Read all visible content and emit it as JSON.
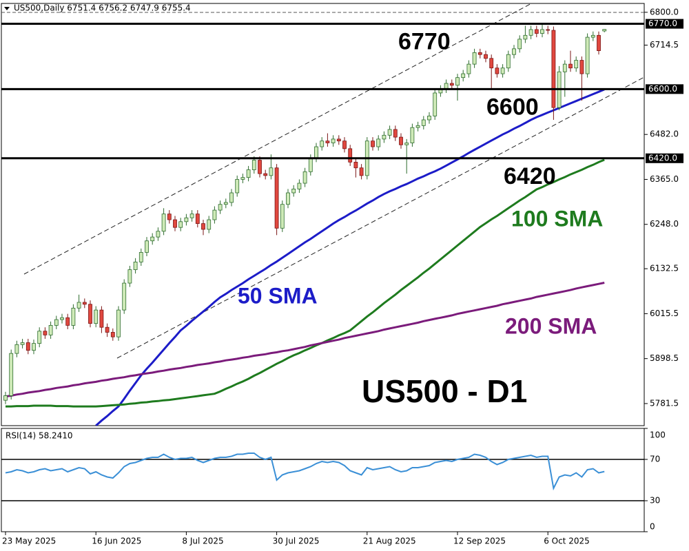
{
  "chart_data": [
    {
      "type": "candlestick",
      "header": "US500,Daily 6751.4 6756.2 6747.9 6755.4",
      "categories": [
        "23 May 2025",
        null,
        null,
        null,
        null,
        null,
        null,
        null,
        null,
        null,
        null,
        null,
        null,
        null,
        null,
        null,
        "16 Jun 2025",
        null,
        null,
        null,
        null,
        null,
        null,
        null,
        null,
        null,
        null,
        null,
        null,
        null,
        null,
        null,
        "8 Jul 2025",
        null,
        null,
        null,
        null,
        null,
        null,
        null,
        null,
        null,
        null,
        null,
        null,
        null,
        null,
        null,
        "30 Jul 2025",
        null,
        null,
        null,
        null,
        null,
        null,
        null,
        null,
        null,
        null,
        null,
        null,
        null,
        null,
        null,
        "21 Aug 2025",
        null,
        null,
        null,
        null,
        null,
        null,
        null,
        null,
        null,
        null,
        null,
        null,
        null,
        null,
        null,
        "12 Sep 2025",
        null,
        null,
        null,
        null,
        null,
        null,
        null,
        null,
        null,
        null,
        null,
        null,
        null,
        null,
        null,
        "6 Oct 2025",
        null,
        null,
        null,
        null,
        null,
        null,
        null,
        null,
        null,
        null
      ],
      "open": [
        5790,
        5802,
        5912,
        5935,
        5940,
        5920,
        5938,
        5970,
        5960,
        5985,
        6000,
        6005,
        5985,
        6030,
        6045,
        6040,
        5990,
        6025,
        5980,
        5967,
        5955,
        6025,
        6095,
        6130,
        6150,
        6175,
        6205,
        6215,
        6230,
        6275,
        6260,
        6240,
        6255,
        6265,
        6275,
        6250,
        6235,
        6260,
        6285,
        6300,
        6305,
        6330,
        6365,
        6370,
        6390,
        6415,
        6380,
        6375,
        6395,
        6238,
        6300,
        6330,
        6340,
        6355,
        6385,
        6420,
        6450,
        6465,
        6460,
        6470,
        6465,
        6445,
        6410,
        6395,
        6375,
        6465,
        6450,
        6470,
        6480,
        6495,
        6475,
        6455,
        6460,
        6500,
        6505,
        6520,
        6530,
        6590,
        6600,
        6615,
        6610,
        6630,
        6640,
        6665,
        6695,
        6690,
        6680,
        6655,
        6640,
        6655,
        6690,
        6705,
        6730,
        6740,
        6755,
        6745,
        6755,
        6753,
        6552,
        6645,
        6665,
        6655,
        6675,
        6640,
        6735,
        6740,
        6751.4
      ],
      "high": [
        5812,
        5922,
        5945,
        5950,
        5950,
        5948,
        5980,
        5980,
        5995,
        6010,
        6015,
        6015,
        6040,
        6065,
        6055,
        6050,
        6035,
        6035,
        5990,
        5977,
        6035,
        6105,
        6140,
        6160,
        6185,
        6215,
        6225,
        6240,
        6290,
        6285,
        6270,
        6265,
        6275,
        6285,
        6285,
        6260,
        6270,
        6295,
        6310,
        6315,
        6340,
        6375,
        6380,
        6400,
        6425,
        6425,
        6390,
        6430,
        6405,
        6310,
        6340,
        6350,
        6365,
        6395,
        6430,
        6460,
        6475,
        6485,
        6480,
        6480,
        6475,
        6455,
        6420,
        6405,
        6475,
        6475,
        6480,
        6490,
        6505,
        6505,
        6485,
        6470,
        6510,
        6515,
        6530,
        6540,
        6600,
        6610,
        6625,
        6625,
        6640,
        6650,
        6675,
        6705,
        6705,
        6700,
        6690,
        6665,
        6665,
        6700,
        6715,
        6740,
        6765,
        6765,
        6765,
        6770,
        6765,
        6763,
        6660,
        6675,
        6700,
        6685,
        6685,
        6745,
        6750,
        6750,
        6756.2
      ],
      "low": [
        5780,
        5792,
        5902,
        5925,
        5910,
        5910,
        5928,
        5950,
        5950,
        5975,
        5990,
        5975,
        5975,
        6020,
        6030,
        5980,
        5980,
        5965,
        5955,
        5945,
        5945,
        6015,
        6085,
        6120,
        6140,
        6165,
        6195,
        6205,
        6220,
        6250,
        6230,
        6230,
        6245,
        6255,
        6240,
        6220,
        6225,
        6250,
        6275,
        6290,
        6295,
        6320,
        6355,
        6360,
        6380,
        6370,
        6365,
        6365,
        6220,
        6228,
        6290,
        6320,
        6330,
        6345,
        6375,
        6410,
        6440,
        6450,
        6450,
        6455,
        6435,
        6400,
        6370,
        6365,
        6365,
        6440,
        6440,
        6460,
        6470,
        6465,
        6445,
        6380,
        6450,
        6490,
        6495,
        6510,
        6520,
        6580,
        6590,
        6600,
        6570,
        6620,
        6630,
        6655,
        6680,
        6670,
        6600,
        6630,
        6630,
        6645,
        6680,
        6695,
        6720,
        6730,
        6735,
        6735,
        6743,
        6520,
        6545,
        6580,
        6645,
        6645,
        6570,
        6630,
        6725,
        6690,
        6747.9
      ],
      "close": [
        5802,
        5912,
        5935,
        5940,
        5920,
        5938,
        5970,
        5960,
        5985,
        6000,
        6005,
        5985,
        6030,
        6045,
        6040,
        5990,
        6025,
        5980,
        5967,
        5955,
        6025,
        6095,
        6130,
        6150,
        6175,
        6205,
        6215,
        6230,
        6275,
        6260,
        6240,
        6255,
        6265,
        6275,
        6250,
        6235,
        6260,
        6285,
        6300,
        6305,
        6330,
        6365,
        6370,
        6390,
        6415,
        6380,
        6375,
        6395,
        6238,
        6300,
        6330,
        6340,
        6355,
        6385,
        6420,
        6450,
        6465,
        6460,
        6470,
        6465,
        6445,
        6410,
        6395,
        6375,
        6465,
        6450,
        6470,
        6480,
        6495,
        6475,
        6455,
        6460,
        6500,
        6505,
        6520,
        6530,
        6590,
        6600,
        6615,
        6610,
        6630,
        6640,
        6665,
        6695,
        6690,
        6680,
        6655,
        6640,
        6655,
        6690,
        6705,
        6730,
        6740,
        6755,
        6745,
        6755,
        6753,
        6552,
        6645,
        6665,
        6655,
        6675,
        6640,
        6735,
        6740,
        6700,
        6755.4
      ],
      "up_color": "#cfeab8",
      "down_color": "#e0483f",
      "series": [
        {
          "name": "50 SMA",
          "color": "#1c1cc8",
          "values": [
            null,
            null,
            null,
            null,
            null,
            null,
            null,
            null,
            null,
            null,
            null,
            null,
            null,
            null,
            null,
            null,
            5724,
            5737,
            5749,
            5762,
            5774,
            5794,
            5815,
            5835,
            5855,
            5872,
            5888,
            5905,
            5922,
            5939,
            5955,
            5972,
            5984,
            5997,
            6009,
            6021,
            6033,
            6046,
            6058,
            6067,
            6077,
            6086,
            6095,
            6105,
            6114,
            6123,
            6132,
            6142,
            6151,
            6161,
            6171,
            6181,
            6191,
            6201,
            6210,
            6220,
            6230,
            6240,
            6250,
            6259,
            6267,
            6276,
            6284,
            6293,
            6302,
            6310,
            6319,
            6327,
            6334,
            6340,
            6347,
            6353,
            6360,
            6367,
            6373,
            6380,
            6386,
            6393,
            6401,
            6409,
            6417,
            6425,
            6434,
            6442,
            6450,
            6458,
            6466,
            6474,
            6482,
            6489,
            6497,
            6504,
            6512,
            6520,
            6527,
            6533,
            6539,
            6545,
            6551,
            6557,
            6563,
            6569,
            6575,
            6581,
            6587,
            6593,
            6599
          ]
        },
        {
          "name": "100 SMA",
          "color": "#1e7b1e",
          "values": [
            5774,
            5774,
            5775,
            5775,
            5775,
            5776,
            5776,
            5776,
            5776,
            5775,
            5775,
            5775,
            5774,
            5774,
            5774,
            5774,
            5774,
            5775,
            5776,
            5777,
            5778,
            5779,
            5781,
            5782,
            5784,
            5785,
            5787,
            5788,
            5790,
            5791,
            5793,
            5795,
            5797,
            5799,
            5801,
            5803,
            5805,
            5807,
            5813,
            5820,
            5826,
            5833,
            5839,
            5846,
            5854,
            5861,
            5869,
            5877,
            5885,
            5892,
            5900,
            5907,
            5913,
            5920,
            5926,
            5933,
            5939,
            5946,
            5952,
            5959,
            5965,
            5972,
            5984,
            5996,
            6008,
            6019,
            6031,
            6043,
            6054,
            6065,
            6077,
            6088,
            6099,
            6110,
            6122,
            6133,
            6145,
            6157,
            6169,
            6181,
            6193,
            6205,
            6217,
            6229,
            6241,
            6251,
            6261,
            6270,
            6280,
            6290,
            6300,
            6310,
            6319,
            6329,
            6339,
            6345,
            6352,
            6358,
            6365,
            6371,
            6378,
            6384,
            6390,
            6397,
            6403,
            6410,
            6416
          ]
        },
        {
          "name": "200 SMA",
          "color": "#7b1b7b",
          "values": [
            5800,
            5802,
            5805,
            5807,
            5810,
            5812,
            5814,
            5817,
            5819,
            5822,
            5824,
            5826,
            5829,
            5831,
            5834,
            5836,
            5838,
            5841,
            5843,
            5846,
            5848,
            5850,
            5853,
            5855,
            5858,
            5860,
            5862,
            5865,
            5867,
            5870,
            5872,
            5874,
            5877,
            5879,
            5882,
            5884,
            5886,
            5889,
            5891,
            5894,
            5896,
            5898,
            5901,
            5903,
            5906,
            5908,
            5910,
            5913,
            5915,
            5918,
            5920,
            5923,
            5926,
            5929,
            5933,
            5936,
            5939,
            5942,
            5945,
            5948,
            5952,
            5955,
            5958,
            5961,
            5964,
            5967,
            5970,
            5974,
            5977,
            5980,
            5983,
            5986,
            5989,
            5992,
            5996,
            5999,
            6002,
            6005,
            6008,
            6011,
            6015,
            6018,
            6021,
            6024,
            6027,
            6030,
            6033,
            6036,
            6040,
            6043,
            6046,
            6049,
            6052,
            6055,
            6059,
            6062,
            6065,
            6068,
            6071,
            6074,
            6077,
            6081,
            6084,
            6087,
            6090,
            6093,
            6096
          ]
        }
      ],
      "levels": [
        {
          "value": 6770,
          "label": "6770",
          "tag": "6770.0"
        },
        {
          "value": 6600,
          "label": "6600",
          "tag": "6600.0"
        },
        {
          "value": 6420,
          "label": "6420",
          "tag": "6420.0"
        }
      ],
      "annotations": [
        "US500 - D1"
      ],
      "ylim": [
        5724,
        6823
      ],
      "yticks": [
        {
          "value": 6800,
          "label": "6800.0"
        },
        6714.5,
        {
          "value": 6482,
          "label": "6482.0"
        },
        {
          "value": 6365,
          "label": "6365.0"
        },
        {
          "value": 6248,
          "label": "6248.0"
        },
        6132.5,
        6015.5,
        5898.5,
        5781.5
      ]
    },
    {
      "type": "line",
      "title": "RSI(14) 58.2410",
      "color": "#3a8fd6",
      "values": [
        57,
        58,
        60,
        59,
        57,
        58,
        60,
        61,
        59,
        60,
        61,
        58,
        60,
        62,
        61,
        56,
        58,
        55,
        53,
        52,
        57,
        63,
        66,
        67,
        69,
        71,
        72,
        72,
        75,
        72,
        70,
        71,
        71,
        72,
        69,
        67,
        69,
        71,
        72,
        72,
        73,
        75,
        75,
        76,
        76,
        72,
        70,
        72,
        50,
        55,
        57,
        58,
        59,
        61,
        63,
        66,
        68,
        67,
        68,
        67,
        64,
        59,
        57,
        55,
        62,
        60,
        61,
        62,
        63,
        60,
        58,
        59,
        62,
        62,
        63,
        64,
        67,
        68,
        69,
        68,
        70,
        71,
        72,
        75,
        74,
        72,
        68,
        65,
        67,
        70,
        71,
        72,
        73,
        74,
        72,
        73,
        73,
        42,
        53,
        55,
        54,
        57,
        53,
        60,
        61,
        57,
        58.241
      ],
      "ylim": [
        0,
        100
      ],
      "yticks": [
        100,
        70,
        30,
        0
      ],
      "hlines": [
        70,
        30
      ]
    }
  ]
}
